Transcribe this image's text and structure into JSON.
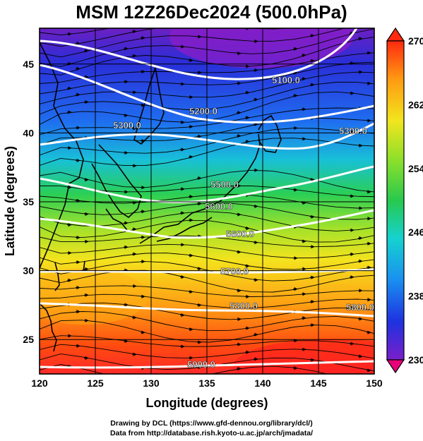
{
  "title": "MSM 12Z26Dec2024 (500.0hPa)",
  "x_axis": {
    "label": "Longitude (degrees)",
    "range": [
      120,
      150
    ],
    "ticks": [
      "120",
      "125",
      "130",
      "135",
      "140",
      "145",
      "150"
    ]
  },
  "y_axis": {
    "label": "Latitude  (degrees)",
    "range": [
      22.5,
      47.6
    ],
    "ticks": [
      "25",
      "30",
      "35",
      "40",
      "45"
    ]
  },
  "colorbar": {
    "range": [
      230,
      270
    ],
    "tick_labels": [
      "270",
      "262",
      "254",
      "246",
      "238",
      "230"
    ],
    "colors": [
      "#e8007a",
      "#7a1fc9",
      "#1e32e0",
      "#1a8ff0",
      "#15d2d0",
      "#28c94e",
      "#8fe02a",
      "#f2e51e",
      "#ff9a12",
      "#ff2a10"
    ]
  },
  "contours": {
    "color": "#ffffff",
    "labels": [
      "5100.0",
      "5200.0",
      "5300.0",
      "5300.0",
      "5500.0",
      "5600.0",
      "5600.0",
      "5700.0",
      "5800.0",
      "5800.0",
      "5900.0"
    ]
  },
  "layers": [
    "temperature-shading",
    "geopotential-height-contours",
    "wind-streamlines",
    "coastlines",
    "graticule"
  ],
  "credits": {
    "line1": "Drawing by DCL (https://www.gfd-dennou.org/library/dcl/)",
    "line2": "Data from http://database.rish.kyoto-u.ac.jp/arch/jmadata/"
  }
}
